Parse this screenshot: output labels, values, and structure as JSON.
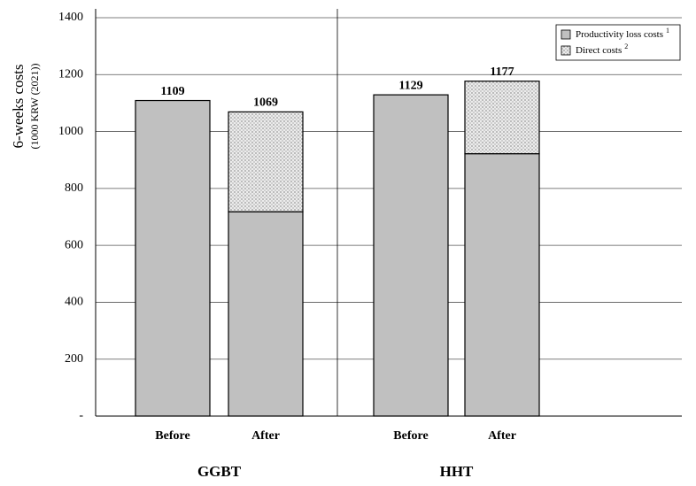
{
  "chart_data": {
    "type": "stacked_bar",
    "ylabel": "6-weeks  costs",
    "ylabel_sub": "(1000 KRW (2021))",
    "groups": [
      "GGBT",
      "HHT"
    ],
    "group_of": [
      0,
      0,
      1,
      1
    ],
    "categories": [
      "Before",
      "After",
      "Before",
      "After"
    ],
    "series": [
      {
        "name": "Productivity loss costs",
        "superscript": "1",
        "color": "#c0c0c0",
        "values": [
          1109,
          718,
          1129,
          922
        ]
      },
      {
        "name": "Direct costs",
        "superscript": "2",
        "color": "#ececec",
        "pattern": "dots",
        "values": [
          null,
          351,
          null,
          255
        ]
      }
    ],
    "totals": [
      null,
      1069,
      null,
      1177
    ],
    "ylim": [
      0,
      1400
    ],
    "yticks": [
      {
        "value": 0,
        "label": "-"
      },
      200,
      400,
      600,
      800,
      1000,
      1200,
      1400
    ],
    "grid": true,
    "legend": "upper right"
  }
}
